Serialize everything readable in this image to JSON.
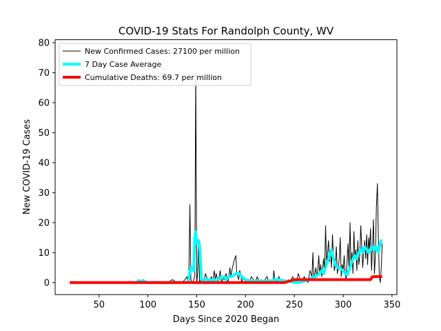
{
  "chart_data": {
    "type": "line",
    "title": "COVID-19 Stats For Randolph County, WV",
    "xlabel": "Days Since 2020 Began",
    "ylabel": "New COVID-19 Cases",
    "xlim": [
      5,
      355
    ],
    "ylim": [
      -4,
      81
    ],
    "xticks": [
      50,
      100,
      150,
      200,
      250,
      300,
      350
    ],
    "yticks": [
      0,
      10,
      20,
      30,
      40,
      50,
      60,
      70,
      80
    ],
    "grid": false,
    "legend_position": "top-left",
    "series": [
      {
        "name": "New Confirmed Cases: 27100 per million",
        "color": "#000000",
        "x": [
          20,
          88,
          90,
          91,
          92,
          95,
          100,
          105,
          120,
          125,
          130,
          135,
          138,
          140,
          141,
          142,
          143,
          144,
          145,
          146,
          147,
          148,
          149,
          150,
          151,
          152,
          153,
          154,
          155,
          156,
          157,
          158,
          159,
          160,
          162,
          164,
          165,
          166,
          168,
          169,
          170,
          172,
          174,
          175,
          176,
          177,
          178,
          180,
          182,
          184,
          185,
          186,
          188,
          190,
          191,
          192,
          193,
          194,
          195,
          196,
          197,
          198,
          200,
          202,
          204,
          206,
          208,
          210,
          212,
          214,
          216,
          218,
          220,
          222,
          224,
          226,
          228,
          229,
          230,
          232,
          234,
          236,
          238,
          240,
          242,
          244,
          246,
          248,
          250,
          252,
          254,
          256,
          258,
          260,
          262,
          264,
          266,
          268,
          269,
          270,
          271,
          272,
          273,
          274,
          275,
          276,
          277,
          278,
          279,
          280,
          281,
          282,
          283,
          284,
          285,
          286,
          287,
          288,
          289,
          290,
          291,
          292,
          293,
          294,
          295,
          296,
          297,
          298,
          299,
          300,
          301,
          302,
          303,
          304,
          305,
          306,
          307,
          308,
          309,
          310,
          311,
          312,
          313,
          314,
          315,
          316,
          317,
          318,
          319,
          320,
          321,
          322,
          323,
          324,
          325,
          326,
          327,
          328,
          329,
          330,
          331,
          332,
          333,
          334,
          335,
          336,
          337,
          338,
          339,
          340
        ],
        "y": [
          0,
          0,
          1,
          0,
          0,
          1,
          0,
          0,
          0,
          1,
          0,
          0,
          1,
          2,
          0,
          3,
          26,
          1,
          0,
          0,
          1,
          2,
          70,
          0,
          3,
          14,
          0,
          1,
          2,
          0,
          0,
          1,
          3,
          2,
          0,
          1,
          2,
          0,
          4,
          1,
          3,
          0,
          4,
          1,
          0,
          2,
          1,
          3,
          0,
          5,
          2,
          4,
          7,
          9,
          3,
          2,
          1,
          4,
          3,
          0,
          1,
          2,
          0,
          1,
          0,
          2,
          1,
          0,
          2,
          0,
          1,
          0,
          1,
          2,
          0,
          1,
          0,
          4,
          1,
          0,
          2,
          1,
          0,
          1,
          0,
          1,
          0,
          2,
          1,
          0,
          3,
          1,
          0,
          2,
          1,
          0,
          4,
          2,
          10,
          1,
          3,
          5,
          2,
          4,
          9,
          3,
          6,
          2,
          5,
          8,
          3,
          19,
          6,
          10,
          14,
          7,
          11,
          5,
          16,
          9,
          4,
          6,
          12,
          3,
          5,
          8,
          15,
          2,
          6,
          4,
          9,
          3,
          1,
          7,
          13,
          4,
          20,
          5,
          10,
          3,
          17,
          8,
          11,
          4,
          14,
          6,
          9,
          19,
          12,
          5,
          10,
          14,
          8,
          16,
          6,
          15,
          11,
          18,
          4,
          12,
          21,
          3,
          9,
          25,
          33,
          15,
          2,
          0,
          5,
          13
        ],
        "linewidth": 1
      },
      {
        "name": "7 Day Case Average",
        "color": "#00ffff",
        "x": [
          88,
          90,
          93,
          96,
          100,
          105,
          140,
          142,
          143,
          145,
          146,
          147,
          148,
          149,
          150,
          152,
          153,
          155,
          157,
          160,
          164,
          168,
          170,
          172,
          175,
          178,
          180,
          183,
          186,
          188,
          190,
          192,
          194,
          196,
          198,
          200,
          205,
          210,
          215,
          220,
          225,
          230,
          235,
          240,
          245,
          250,
          255,
          260,
          265,
          268,
          270,
          272,
          274,
          276,
          278,
          280,
          282,
          284,
          286,
          288,
          290,
          292,
          294,
          296,
          298,
          300,
          302,
          304,
          306,
          308,
          310,
          312,
          314,
          316,
          318,
          320,
          322,
          324,
          326,
          328,
          330,
          332,
          334,
          336,
          338,
          339,
          340
        ],
        "y": [
          0,
          0.5,
          0.5,
          0.5,
          0,
          0,
          0,
          1,
          4,
          5,
          4,
          4,
          15,
          17,
          13,
          14,
          12.5,
          1,
          1,
          1,
          1,
          1,
          0.5,
          1,
          1.5,
          2,
          1,
          2,
          2,
          2.5,
          3,
          3,
          3,
          2,
          1.5,
          1,
          0.5,
          0.5,
          0.5,
          0.5,
          0.5,
          1,
          1,
          0.5,
          0.5,
          0,
          0,
          0.5,
          1,
          1.5,
          2,
          2,
          2.5,
          3,
          4,
          3,
          5,
          7,
          9,
          11,
          8,
          6,
          5,
          5,
          4.5,
          4,
          3,
          2.5,
          4,
          6,
          8,
          9,
          8,
          10,
          11,
          10,
          12,
          11,
          10,
          11,
          12,
          11,
          12,
          10,
          13,
          14,
          14
        ],
        "linewidth": 4
      },
      {
        "name": "Cumulative Deaths: 69.7 per million",
        "color": "#ff0000",
        "x": [
          20,
          240,
          245,
          250,
          260,
          270,
          280,
          290,
          300,
          310,
          320,
          328,
          330,
          332,
          335,
          338,
          340
        ],
        "y": [
          0,
          0,
          0.5,
          1,
          1,
          1,
          1,
          1,
          1,
          1,
          1,
          1,
          2,
          2,
          2,
          2,
          2
        ],
        "linewidth": 4
      }
    ]
  }
}
